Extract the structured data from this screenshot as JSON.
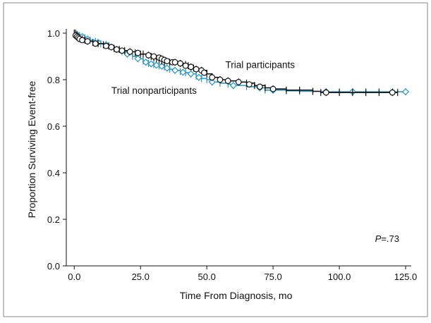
{
  "chart_data": {
    "type": "line",
    "title": "",
    "xlabel": "Time From Diagnosis, mo",
    "ylabel": "Proportion Surviving Event-free",
    "xlim": [
      -3,
      125
    ],
    "ylim": [
      0,
      1.0
    ],
    "x_ticks": [
      0,
      25,
      50,
      75,
      100,
      125
    ],
    "x_tick_labels": [
      "0.0",
      "25.0",
      "50.0",
      "75.0",
      "100.0",
      "125.0"
    ],
    "y_ticks": [
      0,
      0.2,
      0.4,
      0.6,
      0.8,
      1.0
    ],
    "y_tick_labels": [
      "0.0",
      "0.2",
      "0.4",
      "0.6",
      "0.8",
      "1.0"
    ],
    "grid": false,
    "legend": "none",
    "annotation": {
      "label": "P",
      "value": "=.73"
    },
    "series": [
      {
        "name": "Trial participants",
        "color": "#111111",
        "marker": "open-circle",
        "x": [
          0,
          0.5,
          1,
          1.5,
          2,
          3,
          4,
          5,
          7,
          9,
          11,
          13,
          15,
          17,
          19,
          21,
          23,
          25,
          26,
          28,
          29,
          30,
          31,
          32,
          33,
          34,
          36,
          38,
          40,
          42,
          43,
          44,
          45,
          46,
          48,
          50,
          52,
          55,
          58,
          62,
          65,
          68,
          72,
          75,
          80,
          85,
          90,
          93,
          95,
          100,
          105,
          110,
          115,
          120,
          122
        ],
        "y": [
          1.0,
          1.0,
          0.99,
          0.985,
          0.98,
          0.975,
          0.97,
          0.965,
          0.96,
          0.955,
          0.95,
          0.945,
          0.935,
          0.93,
          0.925,
          0.92,
          0.915,
          0.91,
          0.91,
          0.905,
          0.9,
          0.895,
          0.89,
          0.885,
          0.88,
          0.875,
          0.875,
          0.875,
          0.87,
          0.865,
          0.86,
          0.855,
          0.85,
          0.845,
          0.84,
          0.825,
          0.81,
          0.8,
          0.795,
          0.79,
          0.785,
          0.775,
          0.765,
          0.76,
          0.755,
          0.755,
          0.75,
          0.745,
          0.745,
          0.745,
          0.745,
          0.745,
          0.745,
          0.745,
          0.745
        ],
        "markers_x": [
          0.5,
          1,
          1.5,
          2,
          3,
          5,
          8,
          12,
          14,
          16,
          18,
          21,
          24,
          28,
          30,
          32,
          33,
          34,
          35,
          37,
          38,
          40,
          42,
          44,
          46,
          48,
          49,
          52,
          55,
          58,
          62,
          66,
          70,
          75,
          95,
          120
        ],
        "markers_y": [
          0.99,
          0.985,
          0.98,
          0.975,
          0.97,
          0.965,
          0.955,
          0.945,
          0.94,
          0.93,
          0.925,
          0.92,
          0.915,
          0.905,
          0.9,
          0.895,
          0.89,
          0.885,
          0.88,
          0.875,
          0.875,
          0.87,
          0.86,
          0.855,
          0.845,
          0.84,
          0.83,
          0.81,
          0.8,
          0.795,
          0.79,
          0.78,
          0.77,
          0.76,
          0.745,
          0.745
        ]
      },
      {
        "name": "Trial nonparticipants",
        "color": "#2f9ac7",
        "marker": "open-diamond",
        "x": [
          0,
          1,
          2,
          4,
          6,
          8,
          10,
          12,
          14,
          16,
          18,
          20,
          22,
          24,
          26,
          28,
          30,
          32,
          34,
          36,
          38,
          40,
          42,
          44,
          46,
          48,
          50,
          52,
          55,
          58,
          60,
          65,
          70,
          72,
          75,
          80,
          85,
          90,
          95,
          100,
          105,
          110,
          115,
          120,
          125
        ],
        "y": [
          1.0,
          0.995,
          0.99,
          0.98,
          0.97,
          0.965,
          0.955,
          0.95,
          0.94,
          0.93,
          0.92,
          0.91,
          0.9,
          0.89,
          0.88,
          0.87,
          0.865,
          0.86,
          0.855,
          0.845,
          0.84,
          0.835,
          0.83,
          0.825,
          0.815,
          0.805,
          0.8,
          0.79,
          0.785,
          0.78,
          0.775,
          0.77,
          0.765,
          0.755,
          0.755,
          0.752,
          0.75,
          0.75,
          0.748,
          0.748,
          0.748,
          0.748,
          0.748,
          0.748,
          0.748
        ],
        "markers_x": [
          1,
          3,
          5,
          9,
          12,
          16,
          20,
          24,
          27,
          29,
          31,
          33,
          35,
          38,
          41,
          44,
          47,
          52,
          60,
          70,
          75,
          95,
          105,
          125
        ],
        "markers_y": [
          0.995,
          0.985,
          0.975,
          0.96,
          0.95,
          0.93,
          0.91,
          0.89,
          0.875,
          0.868,
          0.862,
          0.858,
          0.85,
          0.84,
          0.832,
          0.825,
          0.81,
          0.79,
          0.775,
          0.765,
          0.755,
          0.748,
          0.748,
          0.748
        ]
      }
    ],
    "annotations": [
      {
        "text": "Trial participants",
        "x": 57,
        "y": 0.85
      },
      {
        "text": "Trial nonparticipants",
        "x": 14,
        "y": 0.74
      }
    ]
  }
}
